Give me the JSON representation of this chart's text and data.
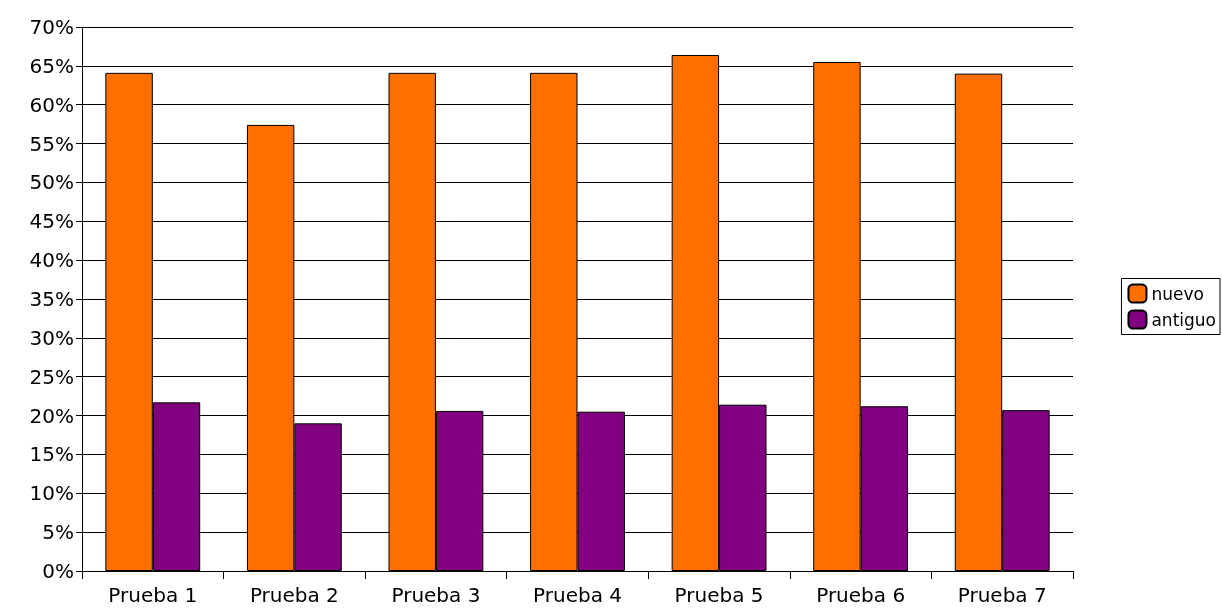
{
  "chart_data": {
    "type": "bar",
    "categories": [
      "Prueba 1",
      "Prueba 2",
      "Prueba 3",
      "Prueba 4",
      "Prueba 5",
      "Prueba 6",
      "Prueba 7"
    ],
    "series": [
      {
        "name": "nuevo",
        "color": "#ff6f00",
        "values": [
          64.1,
          57.4,
          64.1,
          64.1,
          66.4,
          65.5,
          64.0
        ]
      },
      {
        "name": "antiguo",
        "color": "#800080",
        "values": [
          21.7,
          19.0,
          20.6,
          20.5,
          21.4,
          21.2,
          20.7
        ]
      }
    ],
    "ylim": [
      0,
      70
    ],
    "yticks": [
      {
        "value": 0,
        "label": "0%"
      },
      {
        "value": 5,
        "label": "5%"
      },
      {
        "value": 10,
        "label": "10%"
      },
      {
        "value": 15,
        "label": "15%"
      },
      {
        "value": 20,
        "label": "20%"
      },
      {
        "value": 25,
        "label": "25%"
      },
      {
        "value": 30,
        "label": "30%"
      },
      {
        "value": 35,
        "label": "35%"
      },
      {
        "value": 40,
        "label": "40%"
      },
      {
        "value": 45,
        "label": "45%"
      },
      {
        "value": 50,
        "label": "50%"
      },
      {
        "value": 55,
        "label": "55%"
      },
      {
        "value": 60,
        "label": "60%"
      },
      {
        "value": 65,
        "label": "65%"
      },
      {
        "value": 70,
        "label": "70%"
      }
    ],
    "grid": "y",
    "legend": "right"
  }
}
